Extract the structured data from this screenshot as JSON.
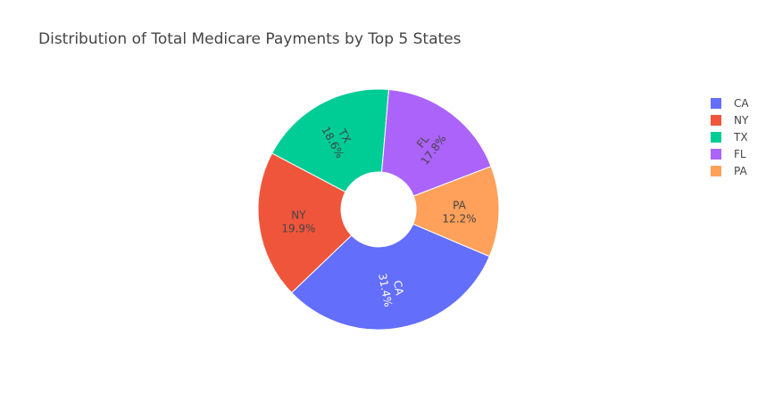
{
  "chart_data": {
    "type": "pie",
    "title": "Distribution of Total Medicare Payments by Top 5 States",
    "hole": true,
    "legend_placement": "right",
    "slices": [
      {
        "label": "CA",
        "percent": 31.4,
        "percent_text": "31.4%",
        "color": "#636efa",
        "text_color": "#ffffff"
      },
      {
        "label": "NY",
        "percent": 19.9,
        "percent_text": "19.9%",
        "color": "#ef553b",
        "text_color": "#444444"
      },
      {
        "label": "TX",
        "percent": 18.6,
        "percent_text": "18.6%",
        "color": "#00cc96",
        "text_color": "#444444"
      },
      {
        "label": "FL",
        "percent": 17.8,
        "percent_text": "17.8%",
        "color": "#ab63fa",
        "text_color": "#444444"
      },
      {
        "label": "PA",
        "percent": 12.2,
        "percent_text": "12.2%",
        "color": "#ffa15a",
        "text_color": "#444444"
      }
    ],
    "legend": [
      "CA",
      "NY",
      "TX",
      "FL",
      "PA"
    ]
  }
}
